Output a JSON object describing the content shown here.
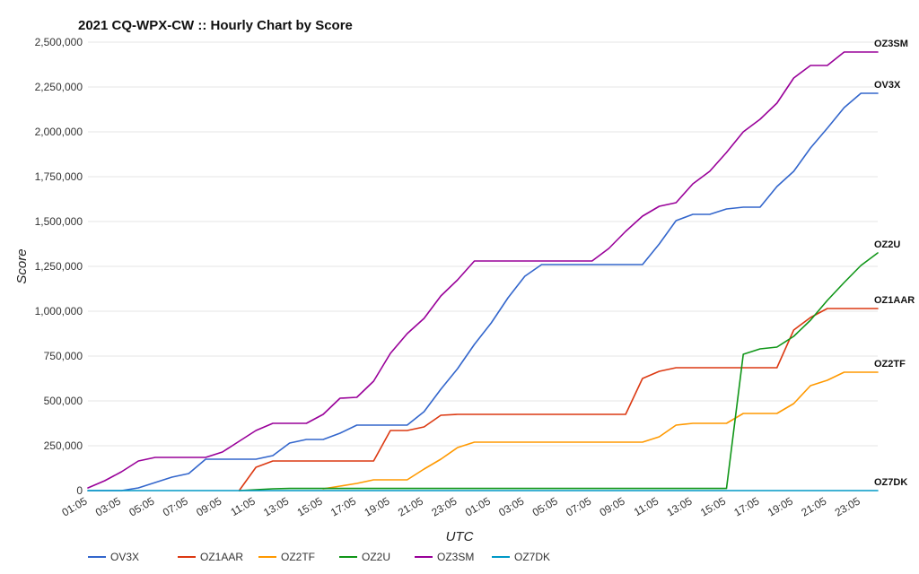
{
  "chart_data": {
    "type": "line",
    "title": "2021 CQ-WPX-CW :: Hourly Chart by Score",
    "xlabel": "UTC",
    "ylabel": "Score",
    "ylim": [
      0,
      2500000
    ],
    "yticks": [
      0,
      250000,
      500000,
      750000,
      1000000,
      1250000,
      1500000,
      1750000,
      2000000,
      2250000,
      2500000
    ],
    "ytick_labels": [
      "0",
      "250,000",
      "500,000",
      "750,000",
      "1,000,000",
      "1,250,000",
      "1,500,000",
      "1,750,000",
      "2,000,000",
      "2,250,000",
      "2,500,000"
    ],
    "x": [
      "01:05",
      "02:05",
      "03:05",
      "04:05",
      "05:05",
      "06:05",
      "07:05",
      "08:05",
      "09:05",
      "10:05",
      "11:05",
      "12:05",
      "13:05",
      "14:05",
      "15:05",
      "16:05",
      "17:05",
      "18:05",
      "19:05",
      "20:05",
      "21:05",
      "22:05",
      "23:05",
      "00:05",
      "01:05",
      "02:05",
      "03:05",
      "04:05",
      "05:05",
      "06:05",
      "07:05",
      "08:05",
      "09:05",
      "10:05",
      "11:05",
      "12:05",
      "13:05",
      "14:05",
      "15:05",
      "16:05",
      "17:05",
      "18:05",
      "19:05",
      "20:05",
      "21:05",
      "22:05",
      "23:05",
      "00:05"
    ],
    "xtick_labels": [
      "01:05",
      "03:05",
      "05:05",
      "07:05",
      "09:05",
      "11:05",
      "13:05",
      "15:05",
      "17:05",
      "19:05",
      "21:05",
      "23:05",
      "01:05",
      "03:05",
      "05:05",
      "07:05",
      "09:05",
      "11:05",
      "13:05",
      "15:05",
      "17:05",
      "19:05",
      "21:05",
      "23:05"
    ],
    "grid": true,
    "legend_position": "bottom",
    "series": [
      {
        "name": "OV3X",
        "color": "#3366cc",
        "values": [
          0,
          0,
          0,
          15000,
          45000,
          75000,
          95000,
          175000,
          175000,
          175000,
          175000,
          195000,
          265000,
          285000,
          285000,
          320000,
          365000,
          365000,
          365000,
          365000,
          440000,
          565000,
          680000,
          815000,
          935000,
          1075000,
          1195000,
          1260000,
          1260000,
          1260000,
          1260000,
          1260000,
          1260000,
          1260000,
          1375000,
          1505000,
          1540000,
          1540000,
          1570000,
          1580000,
          1580000,
          1695000,
          1780000,
          1910000,
          2020000,
          2135000,
          2215000,
          2215000
        ]
      },
      {
        "name": "OZ1AAR",
        "color": "#dc3912",
        "values": [
          null,
          null,
          null,
          null,
          null,
          null,
          null,
          null,
          null,
          0,
          130000,
          165000,
          165000,
          165000,
          165000,
          165000,
          165000,
          165000,
          335000,
          335000,
          355000,
          420000,
          425000,
          425000,
          425000,
          425000,
          425000,
          425000,
          425000,
          425000,
          425000,
          425000,
          425000,
          625000,
          665000,
          685000,
          685000,
          685000,
          685000,
          685000,
          685000,
          685000,
          895000,
          965000,
          1015000,
          1015000,
          1015000,
          1015000
        ]
      },
      {
        "name": "OZ2TF",
        "color": "#ff9900",
        "values": [
          null,
          null,
          null,
          null,
          null,
          null,
          null,
          null,
          null,
          null,
          null,
          null,
          null,
          null,
          10000,
          25000,
          40000,
          60000,
          60000,
          60000,
          120000,
          175000,
          240000,
          270000,
          270000,
          270000,
          270000,
          270000,
          270000,
          270000,
          270000,
          270000,
          270000,
          270000,
          300000,
          365000,
          375000,
          375000,
          375000,
          430000,
          430000,
          430000,
          485000,
          585000,
          615000,
          660000,
          660000,
          660000
        ]
      },
      {
        "name": "OZ2U",
        "color": "#109618",
        "values": [
          null,
          null,
          null,
          null,
          null,
          null,
          null,
          null,
          null,
          0,
          5000,
          10000,
          12000,
          12000,
          12000,
          12000,
          12000,
          12000,
          12000,
          12000,
          12000,
          12000,
          12000,
          12000,
          12000,
          12000,
          12000,
          12000,
          12000,
          12000,
          12000,
          12000,
          12000,
          12000,
          12000,
          12000,
          12000,
          12000,
          12000,
          760000,
          790000,
          800000,
          860000,
          950000,
          1060000,
          1160000,
          1255000,
          1325000
        ]
      },
      {
        "name": "OZ3SM",
        "color": "#990099",
        "values": [
          15000,
          55000,
          105000,
          165000,
          185000,
          185000,
          185000,
          185000,
          215000,
          275000,
          335000,
          375000,
          375000,
          375000,
          425000,
          515000,
          520000,
          610000,
          765000,
          875000,
          960000,
          1085000,
          1175000,
          1280000,
          1280000,
          1280000,
          1280000,
          1280000,
          1280000,
          1280000,
          1280000,
          1350000,
          1445000,
          1530000,
          1585000,
          1605000,
          1710000,
          1780000,
          1885000,
          2000000,
          2070000,
          2160000,
          2300000,
          2370000,
          2370000,
          2445000,
          2445000,
          2445000
        ]
      },
      {
        "name": "OZ7DK",
        "color": "#0099c6",
        "values": [
          0,
          0,
          0,
          0,
          0,
          0,
          0,
          0,
          0,
          0,
          0,
          0,
          0,
          0,
          0,
          0,
          0,
          0,
          0,
          0,
          0,
          0,
          0,
          0,
          0,
          0,
          0,
          0,
          0,
          0,
          0,
          0,
          0,
          0,
          0,
          0,
          0,
          0,
          0,
          0,
          0,
          0,
          0,
          0,
          0,
          0,
          0,
          0
        ]
      }
    ],
    "end_labels": [
      "OZ3SM",
      "OV3X",
      "OZ2U",
      "OZ1AAR",
      "OZ2TF",
      "OZ7DK"
    ]
  }
}
